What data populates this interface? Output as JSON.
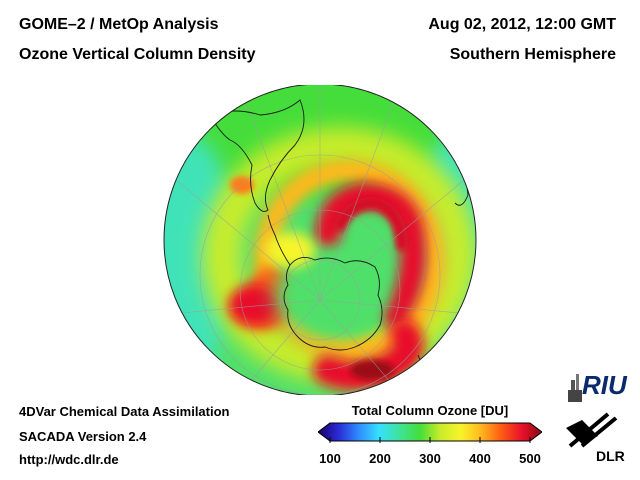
{
  "header": {
    "title_line1": "GOME–2 / MetOp Analysis",
    "title_line2": "Ozone Vertical Column Density",
    "date": "Aug 02, 2012, 12:00 GMT",
    "region": "Southern Hemisphere"
  },
  "footer": {
    "line1": "4DVar Chemical Data Assimilation",
    "line2": "SACADA Version 2.4",
    "line3": "http://wdc.dlr.de"
  },
  "colorbar": {
    "title": "Total Column Ozone [DU]",
    "ticks": [
      "100",
      "200",
      "300",
      "400",
      "500"
    ],
    "min": 100,
    "max": 500,
    "colors": [
      "#1a0066",
      "#2a2ad6",
      "#2f8cff",
      "#36e0ff",
      "#3fe39a",
      "#44dd3a",
      "#c8ec2a",
      "#f7f42a",
      "#ffb81f",
      "#ff5a14",
      "#e8112a",
      "#8c0a14"
    ]
  },
  "map_data": {
    "projection": "polar-orthographic-south",
    "background_ozone_du": 290,
    "features": [
      {
        "name": "ozone-high-pacific-arc",
        "value_du": 440
      },
      {
        "name": "ozone-high-southern-atlantic",
        "value_du": 430
      },
      {
        "name": "ozone-high-indian-ocean",
        "value_du": 450
      },
      {
        "name": "ozone-low-antarctica",
        "value_du": 270
      }
    ]
  },
  "logos": {
    "riu": "RIU",
    "dlr": "DLR"
  }
}
